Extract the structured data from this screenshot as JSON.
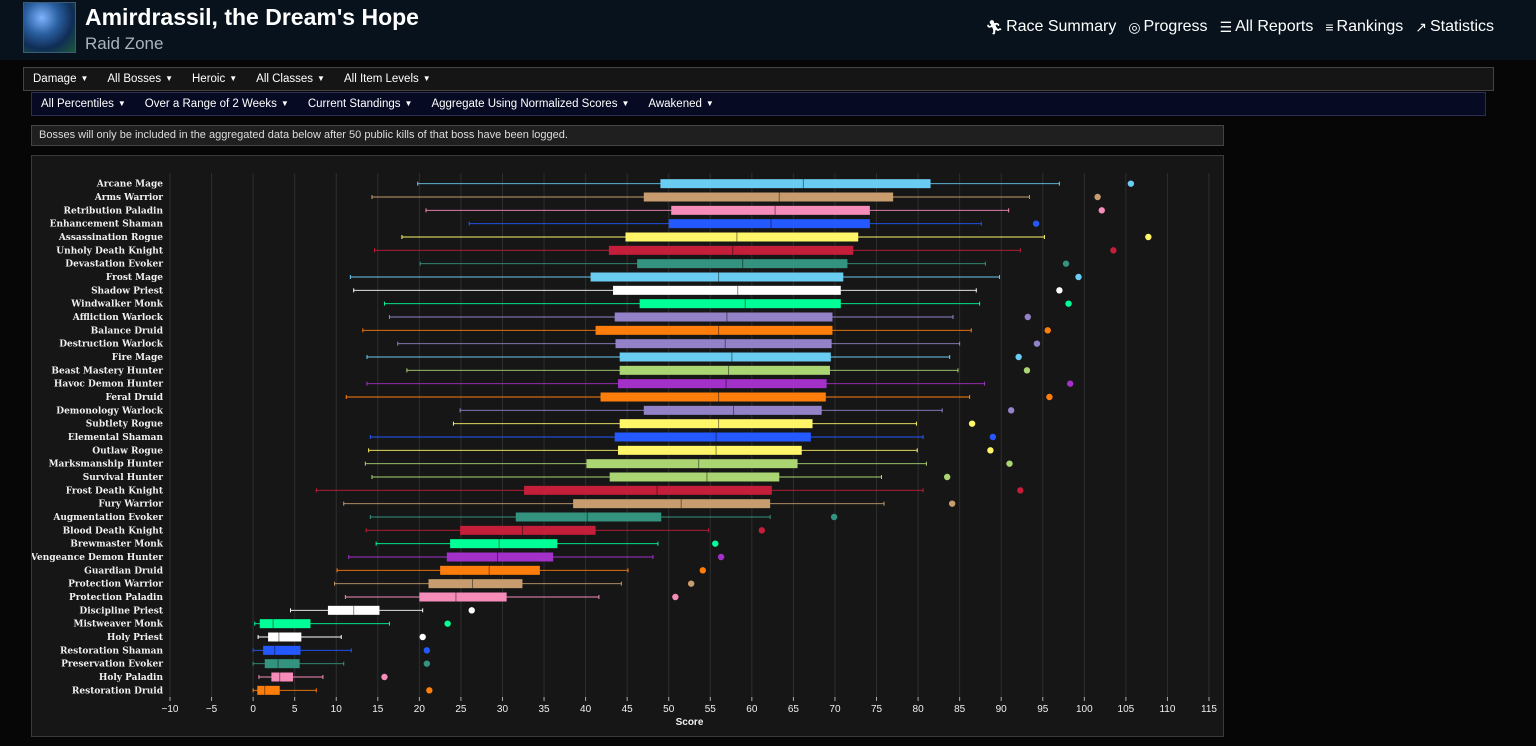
{
  "header": {
    "title": "Amirdrassil, the Dream's Hope",
    "subtitle": "Raid Zone",
    "nav": [
      {
        "label": "Race Summary",
        "icon": "runner-icon"
      },
      {
        "label": "Progress",
        "icon": "globe-icon"
      },
      {
        "label": "All Reports",
        "icon": "list-icon"
      },
      {
        "label": "Rankings",
        "icon": "rankings-icon"
      },
      {
        "label": "Statistics",
        "icon": "trend-icon"
      }
    ]
  },
  "filters": {
    "row1": [
      "Damage",
      "All Bosses",
      "Heroic",
      "All Classes",
      "All Item Levels"
    ],
    "row2": [
      "All Percentiles",
      "Over a Range of 2 Weeks",
      "Current Standings",
      "Aggregate Using Normalized Scores",
      "Awakened"
    ]
  },
  "notice": "Bosses will only be included in the aggregated data below after 50 public kills of that boss have been logged.",
  "chart_data": {
    "type": "boxplot",
    "xlabel": "Score",
    "xlim": [
      -10,
      115
    ],
    "x_ticks": [
      -10,
      -5,
      0,
      5,
      10,
      15,
      20,
      25,
      30,
      35,
      40,
      45,
      50,
      55,
      60,
      65,
      70,
      75,
      80,
      85,
      90,
      95,
      100,
      105,
      110,
      115
    ],
    "grid": true,
    "series": [
      {
        "name": "Arcane Mage",
        "color": "#69ccf0",
        "min": 19.8,
        "q1": 49.0,
        "median": 66.2,
        "q3": 81.5,
        "max": 97.0,
        "outlier": 105.6
      },
      {
        "name": "Arms Warrior",
        "color": "#c79c6e",
        "min": 14.3,
        "q1": 47.0,
        "median": 63.3,
        "q3": 77.0,
        "max": 93.4,
        "outlier": 101.6
      },
      {
        "name": "Retribution Paladin",
        "color": "#f58cba",
        "min": 20.8,
        "q1": 50.3,
        "median": 62.8,
        "q3": 74.2,
        "max": 90.9,
        "outlier": 102.1
      },
      {
        "name": "Enhancement Shaman",
        "color": "#2459ff",
        "min": 26.0,
        "q1": 50.0,
        "median": 62.3,
        "q3": 74.2,
        "max": 87.6,
        "outlier": 94.2
      },
      {
        "name": "Assassination Rogue",
        "color": "#fff569",
        "min": 17.9,
        "q1": 44.8,
        "median": 58.2,
        "q3": 72.8,
        "max": 95.2,
        "outlier": 107.7
      },
      {
        "name": "Unholy Death Knight",
        "color": "#c41e3a",
        "min": 14.6,
        "q1": 42.8,
        "median": 57.7,
        "q3": 72.2,
        "max": 92.3,
        "outlier": 103.5
      },
      {
        "name": "Devastation Evoker",
        "color": "#33937f",
        "min": 20.1,
        "q1": 46.2,
        "median": 58.9,
        "q3": 71.5,
        "max": 88.1,
        "outlier": 97.8
      },
      {
        "name": "Frost Mage",
        "color": "#69ccf0",
        "min": 11.7,
        "q1": 40.6,
        "median": 56.0,
        "q3": 71.0,
        "max": 89.8,
        "outlier": 99.3
      },
      {
        "name": "Shadow Priest",
        "color": "#ffffff",
        "min": 12.1,
        "q1": 43.3,
        "median": 58.3,
        "q3": 70.7,
        "max": 87.0,
        "outlier": 97.0
      },
      {
        "name": "Windwalker Monk",
        "color": "#00ff96",
        "min": 15.8,
        "q1": 46.5,
        "median": 59.2,
        "q3": 70.7,
        "max": 87.4,
        "outlier": 98.1
      },
      {
        "name": "Affliction Warlock",
        "color": "#9482c9",
        "min": 16.4,
        "q1": 43.5,
        "median": 57.0,
        "q3": 69.7,
        "max": 84.2,
        "outlier": 93.2
      },
      {
        "name": "Balance Druid",
        "color": "#ff7d0a",
        "min": 13.2,
        "q1": 41.2,
        "median": 56.0,
        "q3": 69.7,
        "max": 86.4,
        "outlier": 95.6
      },
      {
        "name": "Destruction Warlock",
        "color": "#9482c9",
        "min": 17.4,
        "q1": 43.6,
        "median": 56.8,
        "q3": 69.6,
        "max": 85.0,
        "outlier": 94.3
      },
      {
        "name": "Fire Mage",
        "color": "#69ccf0",
        "min": 13.7,
        "q1": 44.1,
        "median": 57.6,
        "q3": 69.5,
        "max": 83.8,
        "outlier": 92.1
      },
      {
        "name": "Beast Mastery Hunter",
        "color": "#abd473",
        "min": 18.5,
        "q1": 44.1,
        "median": 57.2,
        "q3": 69.4,
        "max": 84.8,
        "outlier": 93.1
      },
      {
        "name": "Havoc Demon Hunter",
        "color": "#a330c9",
        "min": 13.7,
        "q1": 43.9,
        "median": 56.9,
        "q3": 69.0,
        "max": 88.0,
        "outlier": 98.3
      },
      {
        "name": "Feral Druid",
        "color": "#ff7d0a",
        "min": 11.2,
        "q1": 41.8,
        "median": 56.0,
        "q3": 68.9,
        "max": 86.2,
        "outlier": 95.8
      },
      {
        "name": "Demonology Warlock",
        "color": "#9482c9",
        "min": 24.9,
        "q1": 47.0,
        "median": 57.8,
        "q3": 68.4,
        "max": 82.9,
        "outlier": 91.2
      },
      {
        "name": "Subtlety Rogue",
        "color": "#fff569",
        "min": 24.1,
        "q1": 44.1,
        "median": 56.0,
        "q3": 67.3,
        "max": 79.8,
        "outlier": 86.5
      },
      {
        "name": "Elemental Shaman",
        "color": "#2459ff",
        "min": 14.1,
        "q1": 43.5,
        "median": 55.7,
        "q3": 67.1,
        "max": 80.6,
        "outlier": 89.0
      },
      {
        "name": "Outlaw Rogue",
        "color": "#fff569",
        "min": 13.9,
        "q1": 43.9,
        "median": 55.7,
        "q3": 66.0,
        "max": 79.9,
        "outlier": 88.7
      },
      {
        "name": "Marksmanship Hunter",
        "color": "#abd473",
        "min": 13.5,
        "q1": 40.1,
        "median": 53.6,
        "q3": 65.5,
        "max": 81.0,
        "outlier": 91.0
      },
      {
        "name": "Survival Hunter",
        "color": "#abd473",
        "min": 14.3,
        "q1": 42.9,
        "median": 54.6,
        "q3": 63.3,
        "max": 75.6,
        "outlier": 83.5
      },
      {
        "name": "Frost Death Knight",
        "color": "#c41e3a",
        "min": 7.6,
        "q1": 32.6,
        "median": 48.6,
        "q3": 62.4,
        "max": 80.6,
        "outlier": 92.3
      },
      {
        "name": "Fury Warrior",
        "color": "#c79c6e",
        "min": 10.9,
        "q1": 38.5,
        "median": 51.5,
        "q3": 62.2,
        "max": 75.9,
        "outlier": 84.1
      },
      {
        "name": "Augmentation Evoker",
        "color": "#33937f",
        "min": 14.1,
        "q1": 31.6,
        "median": 40.2,
        "q3": 49.1,
        "max": 62.2,
        "outlier": 69.9
      },
      {
        "name": "Blood Death Knight",
        "color": "#c41e3a",
        "min": 13.6,
        "q1": 24.9,
        "median": 32.4,
        "q3": 41.2,
        "max": 54.8,
        "outlier": 61.2
      },
      {
        "name": "Brewmaster Monk",
        "color": "#00ff96",
        "min": 14.8,
        "q1": 23.7,
        "median": 29.6,
        "q3": 36.6,
        "max": 48.7,
        "outlier": 55.6
      },
      {
        "name": "Vengeance Demon Hunter",
        "color": "#a330c9",
        "min": 11.5,
        "q1": 23.3,
        "median": 29.4,
        "q3": 36.1,
        "max": 48.1,
        "outlier": 56.3
      },
      {
        "name": "Guardian Druid",
        "color": "#ff7d0a",
        "min": 10.1,
        "q1": 22.5,
        "median": 28.4,
        "q3": 34.5,
        "max": 45.1,
        "outlier": 54.1
      },
      {
        "name": "Protection Warrior",
        "color": "#c79c6e",
        "min": 9.8,
        "q1": 21.1,
        "median": 26.4,
        "q3": 32.4,
        "max": 44.3,
        "outlier": 52.7
      },
      {
        "name": "Protection Paladin",
        "color": "#f58cba",
        "min": 11.1,
        "q1": 20.0,
        "median": 24.4,
        "q3": 30.5,
        "max": 41.6,
        "outlier": 50.8
      },
      {
        "name": "Discipline Priest",
        "color": "#ffffff",
        "min": 4.5,
        "q1": 9.0,
        "median": 12.1,
        "q3": 15.2,
        "max": 20.4,
        "outlier": 26.3
      },
      {
        "name": "Mistweaver Monk",
        "color": "#00ff96",
        "min": 0.2,
        "q1": 0.8,
        "median": 2.4,
        "q3": 6.9,
        "max": 16.4,
        "outlier": 23.4
      },
      {
        "name": "Holy Priest",
        "color": "#ffffff",
        "min": 0.6,
        "q1": 1.8,
        "median": 3.1,
        "q3": 5.8,
        "max": 10.6,
        "outlier": 20.4
      },
      {
        "name": "Restoration Shaman",
        "color": "#2459ff",
        "min": 0.0,
        "q1": 1.2,
        "median": 2.6,
        "q3": 5.7,
        "max": 11.8,
        "outlier": 20.9
      },
      {
        "name": "Preservation Evoker",
        "color": "#33937f",
        "min": 0.0,
        "q1": 1.4,
        "median": 3.0,
        "q3": 5.6,
        "max": 10.9,
        "outlier": 20.9
      },
      {
        "name": "Holy Paladin",
        "color": "#f58cba",
        "min": 0.7,
        "q1": 2.2,
        "median": 3.2,
        "q3": 4.8,
        "max": 8.4,
        "outlier": 15.8
      },
      {
        "name": "Restoration Druid",
        "color": "#ff7d0a",
        "min": 0.0,
        "q1": 0.5,
        "median": 1.4,
        "q3": 3.2,
        "max": 7.6,
        "outlier": 21.2
      }
    ]
  }
}
